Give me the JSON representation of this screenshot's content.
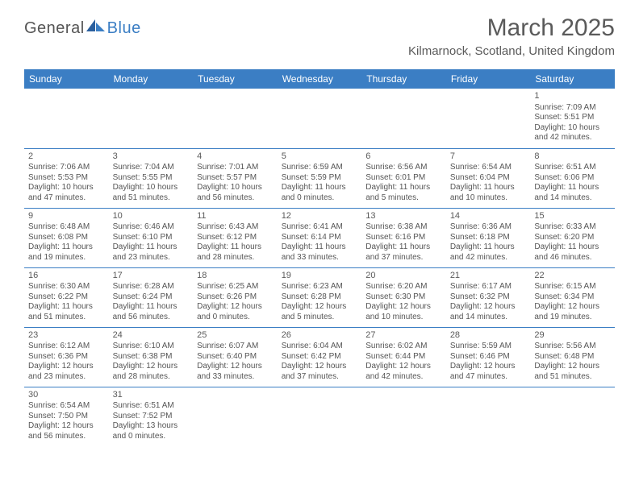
{
  "brand": {
    "part1": "General",
    "part2": "Blue"
  },
  "title": "March 2025",
  "location": "Kilmarnock, Scotland, United Kingdom",
  "colors": {
    "header_bg": "#3b7ec4",
    "header_text": "#ffffff",
    "rule": "#3b7ec4",
    "body_text": "#555555"
  },
  "day_headers": [
    "Sunday",
    "Monday",
    "Tuesday",
    "Wednesday",
    "Thursday",
    "Friday",
    "Saturday"
  ],
  "weeks": [
    [
      null,
      null,
      null,
      null,
      null,
      null,
      {
        "n": "1",
        "rise": "Sunrise: 7:09 AM",
        "set": "Sunset: 5:51 PM",
        "d1": "Daylight: 10 hours",
        "d2": "and 42 minutes."
      }
    ],
    [
      {
        "n": "2",
        "rise": "Sunrise: 7:06 AM",
        "set": "Sunset: 5:53 PM",
        "d1": "Daylight: 10 hours",
        "d2": "and 47 minutes."
      },
      {
        "n": "3",
        "rise": "Sunrise: 7:04 AM",
        "set": "Sunset: 5:55 PM",
        "d1": "Daylight: 10 hours",
        "d2": "and 51 minutes."
      },
      {
        "n": "4",
        "rise": "Sunrise: 7:01 AM",
        "set": "Sunset: 5:57 PM",
        "d1": "Daylight: 10 hours",
        "d2": "and 56 minutes."
      },
      {
        "n": "5",
        "rise": "Sunrise: 6:59 AM",
        "set": "Sunset: 5:59 PM",
        "d1": "Daylight: 11 hours",
        "d2": "and 0 minutes."
      },
      {
        "n": "6",
        "rise": "Sunrise: 6:56 AM",
        "set": "Sunset: 6:01 PM",
        "d1": "Daylight: 11 hours",
        "d2": "and 5 minutes."
      },
      {
        "n": "7",
        "rise": "Sunrise: 6:54 AM",
        "set": "Sunset: 6:04 PM",
        "d1": "Daylight: 11 hours",
        "d2": "and 10 minutes."
      },
      {
        "n": "8",
        "rise": "Sunrise: 6:51 AM",
        "set": "Sunset: 6:06 PM",
        "d1": "Daylight: 11 hours",
        "d2": "and 14 minutes."
      }
    ],
    [
      {
        "n": "9",
        "rise": "Sunrise: 6:48 AM",
        "set": "Sunset: 6:08 PM",
        "d1": "Daylight: 11 hours",
        "d2": "and 19 minutes."
      },
      {
        "n": "10",
        "rise": "Sunrise: 6:46 AM",
        "set": "Sunset: 6:10 PM",
        "d1": "Daylight: 11 hours",
        "d2": "and 23 minutes."
      },
      {
        "n": "11",
        "rise": "Sunrise: 6:43 AM",
        "set": "Sunset: 6:12 PM",
        "d1": "Daylight: 11 hours",
        "d2": "and 28 minutes."
      },
      {
        "n": "12",
        "rise": "Sunrise: 6:41 AM",
        "set": "Sunset: 6:14 PM",
        "d1": "Daylight: 11 hours",
        "d2": "and 33 minutes."
      },
      {
        "n": "13",
        "rise": "Sunrise: 6:38 AM",
        "set": "Sunset: 6:16 PM",
        "d1": "Daylight: 11 hours",
        "d2": "and 37 minutes."
      },
      {
        "n": "14",
        "rise": "Sunrise: 6:36 AM",
        "set": "Sunset: 6:18 PM",
        "d1": "Daylight: 11 hours",
        "d2": "and 42 minutes."
      },
      {
        "n": "15",
        "rise": "Sunrise: 6:33 AM",
        "set": "Sunset: 6:20 PM",
        "d1": "Daylight: 11 hours",
        "d2": "and 46 minutes."
      }
    ],
    [
      {
        "n": "16",
        "rise": "Sunrise: 6:30 AM",
        "set": "Sunset: 6:22 PM",
        "d1": "Daylight: 11 hours",
        "d2": "and 51 minutes."
      },
      {
        "n": "17",
        "rise": "Sunrise: 6:28 AM",
        "set": "Sunset: 6:24 PM",
        "d1": "Daylight: 11 hours",
        "d2": "and 56 minutes."
      },
      {
        "n": "18",
        "rise": "Sunrise: 6:25 AM",
        "set": "Sunset: 6:26 PM",
        "d1": "Daylight: 12 hours",
        "d2": "and 0 minutes."
      },
      {
        "n": "19",
        "rise": "Sunrise: 6:23 AM",
        "set": "Sunset: 6:28 PM",
        "d1": "Daylight: 12 hours",
        "d2": "and 5 minutes."
      },
      {
        "n": "20",
        "rise": "Sunrise: 6:20 AM",
        "set": "Sunset: 6:30 PM",
        "d1": "Daylight: 12 hours",
        "d2": "and 10 minutes."
      },
      {
        "n": "21",
        "rise": "Sunrise: 6:17 AM",
        "set": "Sunset: 6:32 PM",
        "d1": "Daylight: 12 hours",
        "d2": "and 14 minutes."
      },
      {
        "n": "22",
        "rise": "Sunrise: 6:15 AM",
        "set": "Sunset: 6:34 PM",
        "d1": "Daylight: 12 hours",
        "d2": "and 19 minutes."
      }
    ],
    [
      {
        "n": "23",
        "rise": "Sunrise: 6:12 AM",
        "set": "Sunset: 6:36 PM",
        "d1": "Daylight: 12 hours",
        "d2": "and 23 minutes."
      },
      {
        "n": "24",
        "rise": "Sunrise: 6:10 AM",
        "set": "Sunset: 6:38 PM",
        "d1": "Daylight: 12 hours",
        "d2": "and 28 minutes."
      },
      {
        "n": "25",
        "rise": "Sunrise: 6:07 AM",
        "set": "Sunset: 6:40 PM",
        "d1": "Daylight: 12 hours",
        "d2": "and 33 minutes."
      },
      {
        "n": "26",
        "rise": "Sunrise: 6:04 AM",
        "set": "Sunset: 6:42 PM",
        "d1": "Daylight: 12 hours",
        "d2": "and 37 minutes."
      },
      {
        "n": "27",
        "rise": "Sunrise: 6:02 AM",
        "set": "Sunset: 6:44 PM",
        "d1": "Daylight: 12 hours",
        "d2": "and 42 minutes."
      },
      {
        "n": "28",
        "rise": "Sunrise: 5:59 AM",
        "set": "Sunset: 6:46 PM",
        "d1": "Daylight: 12 hours",
        "d2": "and 47 minutes."
      },
      {
        "n": "29",
        "rise": "Sunrise: 5:56 AM",
        "set": "Sunset: 6:48 PM",
        "d1": "Daylight: 12 hours",
        "d2": "and 51 minutes."
      }
    ],
    [
      {
        "n": "30",
        "rise": "Sunrise: 6:54 AM",
        "set": "Sunset: 7:50 PM",
        "d1": "Daylight: 12 hours",
        "d2": "and 56 minutes."
      },
      {
        "n": "31",
        "rise": "Sunrise: 6:51 AM",
        "set": "Sunset: 7:52 PM",
        "d1": "Daylight: 13 hours",
        "d2": "and 0 minutes."
      },
      null,
      null,
      null,
      null,
      null
    ]
  ]
}
